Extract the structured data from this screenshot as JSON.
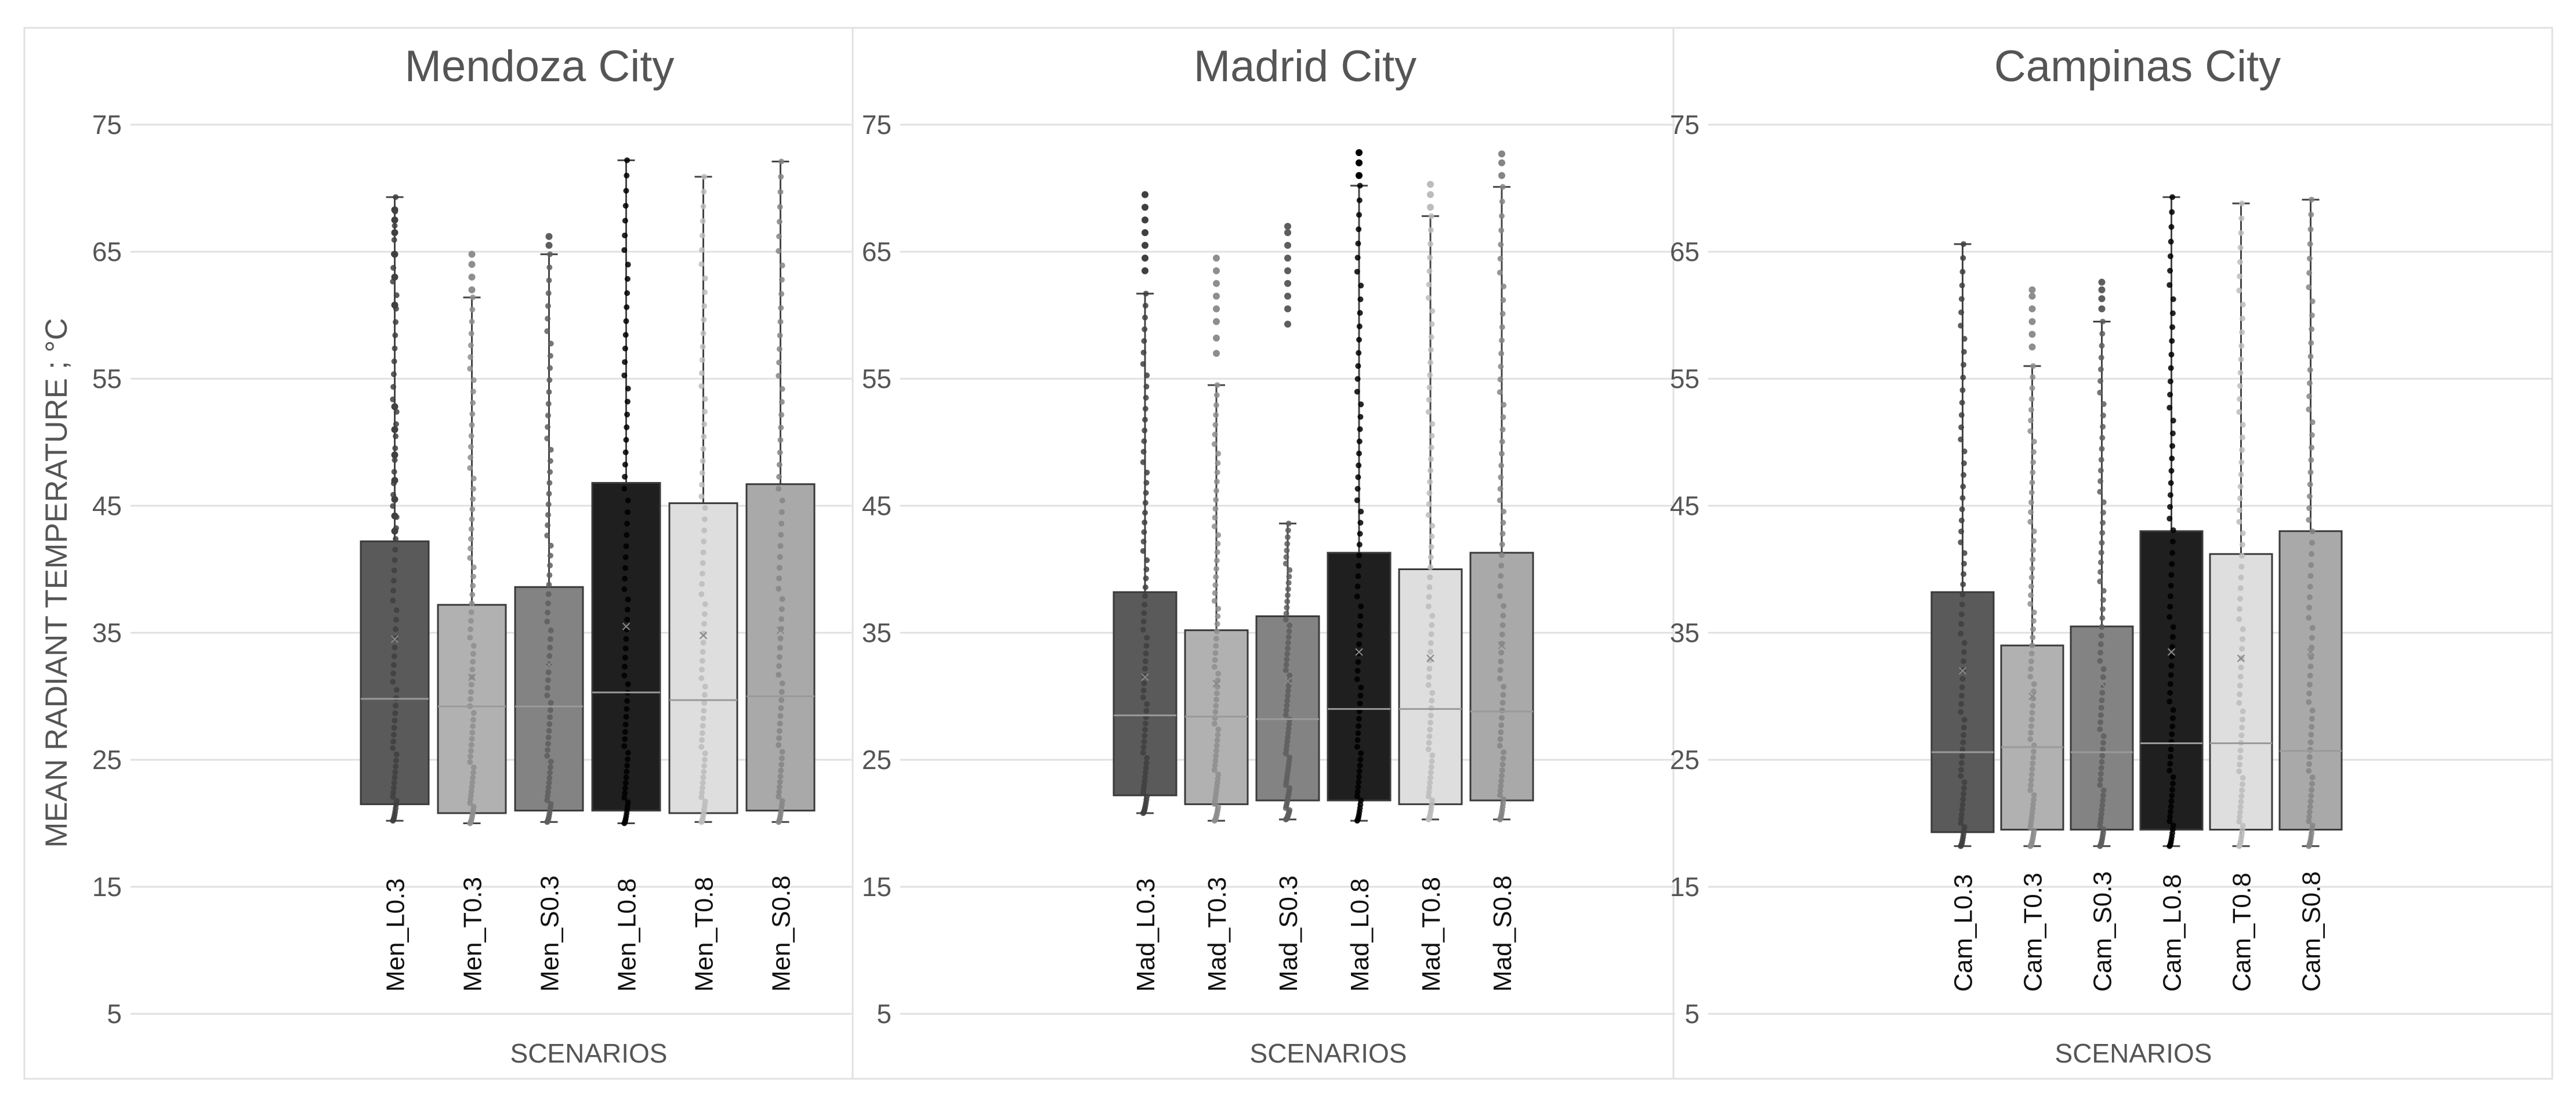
{
  "figure": {
    "ylabel": "MEAN RADIANT TEMPERATURE ; °C",
    "xlabel": "SCENARIOS",
    "yticks": [
      5,
      15,
      25,
      35,
      45,
      55,
      65,
      75
    ]
  },
  "series_styles": [
    {
      "fill": "#5a5a5a",
      "point": "#404040"
    },
    {
      "fill": "#b1b1b1",
      "point": "#8e8e8e"
    },
    {
      "fill": "#838383",
      "point": "#5e5e5e"
    },
    {
      "fill": "#1f1f1f",
      "point": "#000000"
    },
    {
      "fill": "#dedede",
      "point": "#bcbcbc"
    },
    {
      "fill": "#a9a9a9",
      "point": "#858585"
    }
  ],
  "chart_data": [
    {
      "type": "boxplot",
      "title": "Mendoza City",
      "xlabel": "SCENARIOS",
      "ylabel": "MEAN RADIANT TEMPERATURE ; °C",
      "ylim": [
        5,
        75
      ],
      "grid": true,
      "categories": [
        "Men_L0.3",
        "Men_T0.3",
        "Men_S0.3",
        "Men_L0.8",
        "Men_T0.8",
        "Men_S0.8"
      ],
      "boxes": [
        {
          "min": 20.2,
          "q1": 21.5,
          "median": 29.8,
          "q3": 42.2,
          "max": 69.3,
          "mean": 34.5
        },
        {
          "min": 20.0,
          "q1": 20.8,
          "median": 29.2,
          "q3": 37.2,
          "max": 61.4,
          "mean": 31.5
        },
        {
          "min": 20.1,
          "q1": 21.0,
          "median": 29.2,
          "q3": 38.6,
          "max": 64.8,
          "mean": 32.5
        },
        {
          "min": 20.0,
          "q1": 21.0,
          "median": 30.3,
          "q3": 46.8,
          "max": 72.2,
          "mean": 35.5
        },
        {
          "min": 20.1,
          "q1": 20.8,
          "median": 29.7,
          "q3": 45.2,
          "max": 70.9,
          "mean": 34.8
        },
        {
          "min": 20.1,
          "q1": 21.0,
          "median": 30.0,
          "q3": 46.7,
          "max": 72.1,
          "mean": 35.2
        }
      ],
      "outliers": [
        [
          43.0,
          44.2,
          45.5,
          47.0,
          49.0,
          51.0,
          52.8,
          60.8,
          63.0,
          64.8,
          66.5,
          67.5,
          68.3
        ],
        [
          62.0,
          63.0,
          64.0,
          64.8
        ],
        [
          65.5,
          66.2
        ],
        [],
        [],
        []
      ]
    },
    {
      "type": "boxplot",
      "title": "Madrid City",
      "xlabel": "SCENARIOS",
      "ylabel": "MEAN RADIANT TEMPERATURE ; °C",
      "ylim": [
        5,
        75
      ],
      "grid": true,
      "categories": [
        "Mad_L0.3",
        "Mad_T0.3",
        "Mad_S0.3",
        "Mad_L0.8",
        "Mad_T0.8",
        "Mad_S0.8"
      ],
      "boxes": [
        {
          "min": 20.8,
          "q1": 22.2,
          "median": 28.5,
          "q3": 38.2,
          "max": 61.7,
          "mean": 31.5
        },
        {
          "min": 20.2,
          "q1": 21.5,
          "median": 28.4,
          "q3": 35.2,
          "max": 54.5,
          "mean": 31.0
        },
        {
          "min": 20.3,
          "q1": 21.8,
          "median": 28.2,
          "q3": 36.3,
          "max": 43.6,
          "mean": 31.2
        },
        {
          "min": 20.2,
          "q1": 21.8,
          "median": 29.0,
          "q3": 41.3,
          "max": 70.2,
          "mean": 33.5
        },
        {
          "min": 20.3,
          "q1": 21.5,
          "median": 29.0,
          "q3": 40.0,
          "max": 67.8,
          "mean": 33.0
        },
        {
          "min": 20.3,
          "q1": 21.8,
          "median": 28.8,
          "q3": 41.3,
          "max": 70.1,
          "mean": 34.0
        }
      ],
      "outliers": [
        [
          63.5,
          64.5,
          65.5,
          66.5,
          67.5,
          68.5,
          69.5
        ],
        [
          57.0,
          58.2,
          59.5,
          60.5,
          61.5,
          62.5,
          63.5,
          64.5
        ],
        [
          59.3,
          60.5,
          61.5,
          62.5,
          63.5,
          64.5,
          65.5,
          66.5,
          67.0
        ],
        [
          71.0,
          72.0,
          72.8
        ],
        [
          68.5,
          69.5,
          70.3
        ],
        [
          71.0,
          72.0,
          72.7
        ]
      ]
    },
    {
      "type": "boxplot",
      "title": "Campinas City",
      "xlabel": "SCENARIOS",
      "ylabel": "MEAN RADIANT TEMPERATURE ; °C",
      "ylim": [
        5,
        75
      ],
      "grid": true,
      "categories": [
        "Cam_L0.3",
        "Cam_T0.3",
        "Cam_S0.3",
        "Cam_L0.8",
        "Cam_T0.8",
        "Cam_S0.8"
      ],
      "boxes": [
        {
          "min": 18.2,
          "q1": 19.3,
          "median": 25.6,
          "q3": 38.2,
          "max": 65.6,
          "mean": 32.0
        },
        {
          "min": 18.2,
          "q1": 19.5,
          "median": 26.0,
          "q3": 34.0,
          "max": 56.0,
          "mean": 30.0
        },
        {
          "min": 18.2,
          "q1": 19.5,
          "median": 25.6,
          "q3": 35.5,
          "max": 59.5,
          "mean": 31.0
        },
        {
          "min": 18.2,
          "q1": 19.5,
          "median": 26.3,
          "q3": 43.0,
          "max": 69.3,
          "mean": 33.5
        },
        {
          "min": 18.2,
          "q1": 19.5,
          "median": 26.3,
          "q3": 41.2,
          "max": 68.8,
          "mean": 33.0
        },
        {
          "min": 18.2,
          "q1": 19.5,
          "median": 25.7,
          "q3": 43.0,
          "max": 69.1,
          "mean": 33.5
        }
      ],
      "outliers": [
        [],
        [
          57.5,
          58.5,
          59.5,
          60.5,
          61.5,
          62.0
        ],
        [
          60.5,
          61.3,
          62.0,
          62.6
        ],
        [],
        [],
        []
      ]
    }
  ]
}
